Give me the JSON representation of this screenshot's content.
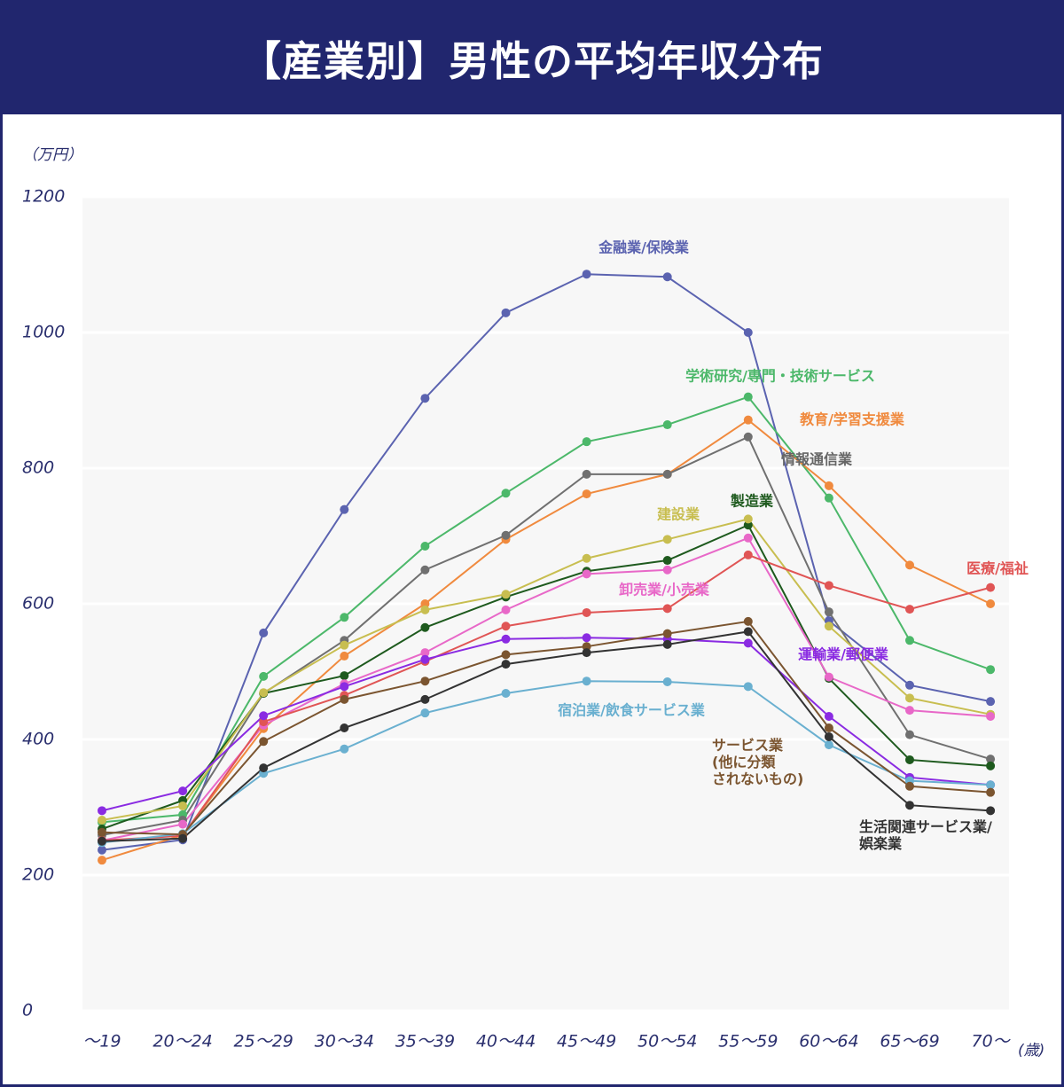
{
  "chart_data": {
    "type": "line",
    "title": "【産業別】男性の平均年収分布",
    "y_label": "（万円）",
    "x_label": "(歳)",
    "categories": [
      "～19",
      "20～24",
      "25～29",
      "30～34",
      "35～39",
      "40～44",
      "45～49",
      "50～54",
      "55～59",
      "60～64",
      "65～69",
      "70～"
    ],
    "ylim": [
      0,
      1200
    ],
    "yticks": [
      0,
      200,
      400,
      600,
      800,
      1000,
      1200
    ],
    "grid": true,
    "series": [
      {
        "name": "金融業/保険業",
        "color": "#5b63b0",
        "values": [
          237,
          252,
          557,
          739,
          903,
          1029,
          1086,
          1082,
          1000,
          575,
          480,
          456
        ]
      },
      {
        "name": "学術研究/専門・技術サービス",
        "color": "#4cb86a",
        "values": [
          278,
          289,
          493,
          580,
          685,
          763,
          839,
          864,
          905,
          756,
          546,
          503
        ]
      },
      {
        "name": "教育/学習支援業",
        "color": "#f08a3e",
        "values": [
          222,
          259,
          416,
          523,
          600,
          695,
          762,
          791,
          871,
          774,
          657,
          600
        ]
      },
      {
        "name": "情報通信業",
        "color": "#707070",
        "values": [
          259,
          281,
          468,
          546,
          650,
          701,
          791,
          791,
          846,
          588,
          407,
          371
        ]
      },
      {
        "name": "製造業",
        "color": "#1e5a1e",
        "values": [
          268,
          310,
          468,
          494,
          565,
          610,
          648,
          664,
          716,
          490,
          370,
          361
        ]
      },
      {
        "name": "建設業",
        "color": "#c8be50",
        "values": [
          281,
          302,
          469,
          539,
          591,
          614,
          667,
          695,
          725,
          567,
          461,
          437
        ]
      },
      {
        "name": "卸売業/小売業",
        "color": "#e868c8",
        "values": [
          251,
          275,
          421,
          482,
          528,
          591,
          644,
          650,
          697,
          492,
          443,
          434
        ]
      },
      {
        "name": "医療/福祉",
        "color": "#e05555",
        "values": [
          251,
          258,
          426,
          465,
          515,
          567,
          587,
          593,
          672,
          627,
          592,
          624
        ]
      },
      {
        "name": "運輸業/郵便業",
        "color": "#8a2be2",
        "values": [
          295,
          324,
          435,
          478,
          518,
          548,
          550,
          548,
          542,
          434,
          344,
          333
        ]
      },
      {
        "name": "宿泊業/飲食サービス業",
        "color": "#6ab0d0",
        "values": [
          248,
          261,
          350,
          386,
          439,
          468,
          486,
          485,
          478,
          392,
          339,
          333
        ]
      },
      {
        "name": "サービス業\n(他に分類\nされないもの)",
        "color": "#7b5530",
        "values": [
          263,
          260,
          397,
          459,
          486,
          525,
          537,
          556,
          574,
          417,
          331,
          322
        ]
      },
      {
        "name": "生活関連サービス業/娯楽業",
        "color": "#333333",
        "values": [
          250,
          254,
          358,
          417,
          459,
          511,
          528,
          540,
          559,
          404,
          303,
          295
        ]
      }
    ]
  }
}
